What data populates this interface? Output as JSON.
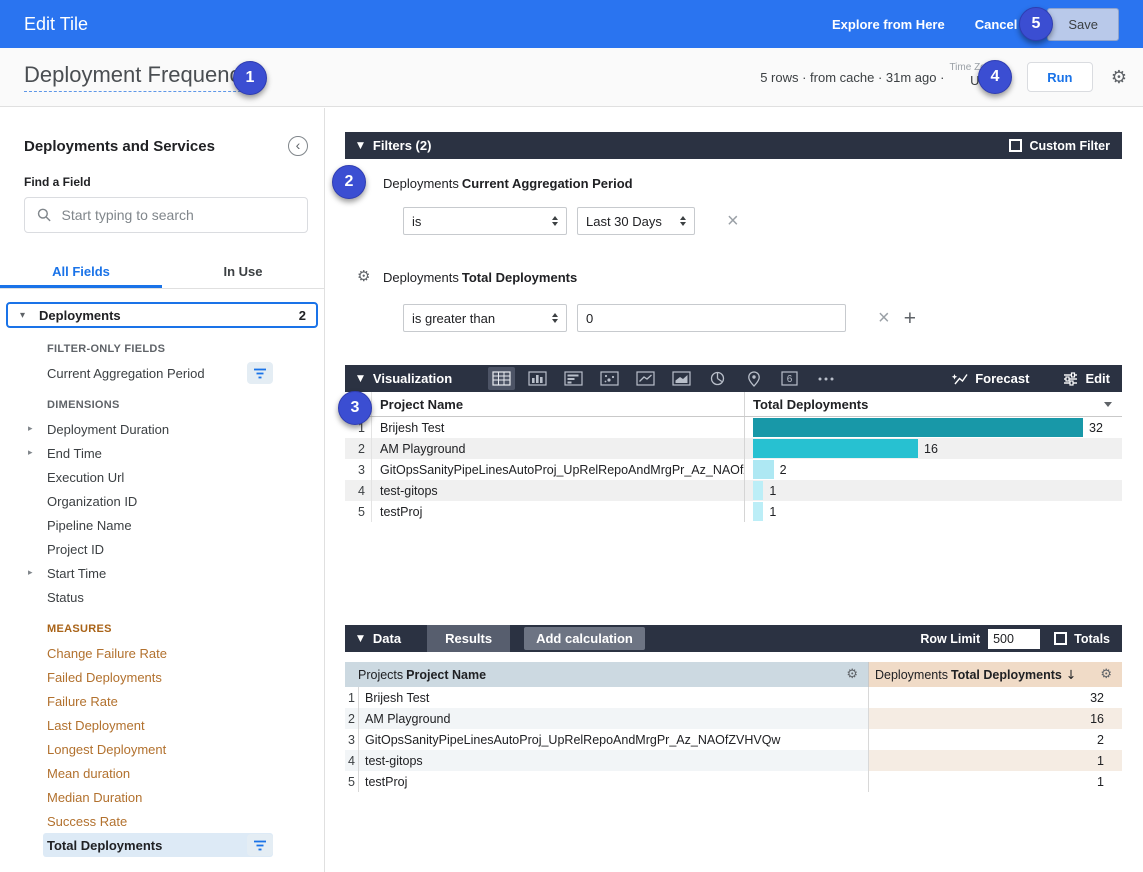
{
  "topbar": {
    "title": "Edit Tile",
    "explore": "Explore from Here",
    "cancel": "Cancel",
    "save": "Save"
  },
  "header": {
    "title": "Deployment Frequency",
    "status": "5 rows · from cache · 31m ago ·",
    "timezone_label": "Time Zone",
    "timezone_value": "UTC",
    "run_label": "Run"
  },
  "sidebar": {
    "title": "Deployments and Services",
    "find_label": "Find a Field",
    "search_placeholder": "Start typing to search",
    "tabs": [
      "All Fields",
      "In Use"
    ],
    "group": {
      "name": "Deployments",
      "count": "2"
    },
    "filter_only": {
      "header": "FILTER-ONLY FIELDS",
      "items": [
        "Current Aggregation Period"
      ]
    },
    "dimensions": {
      "header": "DIMENSIONS",
      "items": [
        {
          "label": "Deployment Duration",
          "expandable": true
        },
        {
          "label": "End Time",
          "expandable": true
        },
        {
          "label": "Execution Url",
          "expandable": false
        },
        {
          "label": "Organization ID",
          "expandable": false
        },
        {
          "label": "Pipeline Name",
          "expandable": false
        },
        {
          "label": "Project ID",
          "expandable": false
        },
        {
          "label": "Start Time",
          "expandable": true
        },
        {
          "label": "Status",
          "expandable": false
        }
      ]
    },
    "measures": {
      "header": "MEASURES",
      "items": [
        "Change Failure Rate",
        "Failed Deployments",
        "Failure Rate",
        "Last Deployment",
        "Longest Deployment",
        "Mean duration",
        "Median Duration",
        "Success Rate"
      ],
      "selected": "Total Deployments"
    }
  },
  "filters": {
    "title": "Filters (2)",
    "custom_filter": "Custom Filter",
    "rows": [
      {
        "field_prefix": "Deployments",
        "field_name": "Current Aggregation Period",
        "operator": "is",
        "value": "Last 30 Days"
      },
      {
        "field_prefix": "Deployments",
        "field_name": "Total Deployments",
        "operator": "is greater than",
        "value": "0"
      }
    ]
  },
  "visualization": {
    "title": "Visualization",
    "forecast": "Forecast",
    "edit": "Edit",
    "single_value_icon": "6",
    "columns": [
      "Project Name",
      "Total Deployments"
    ],
    "max": 32,
    "bar_colors": [
      "#1898a8",
      "#27c1d1",
      "#aee8f3",
      "#bceef7",
      "#bceef7"
    ],
    "rows": [
      {
        "num": "1",
        "name": "Brijesh Test",
        "value": 32
      },
      {
        "num": "2",
        "name": "AM Playground",
        "value": 16
      },
      {
        "num": "3",
        "name": "GitOpsSanityPipeLinesAutoProj_UpRelRepoAndMrgPr_Az_NAOfZ...",
        "value": 2
      },
      {
        "num": "4",
        "name": "test-gitops",
        "value": 1
      },
      {
        "num": "5",
        "name": "testProj",
        "value": 1
      }
    ]
  },
  "data_panel": {
    "title": "Data",
    "results_tab": "Results",
    "add_calculation": "Add calculation",
    "row_limit_label": "Row Limit",
    "row_limit_value": "500",
    "totals_label": "Totals",
    "columns": [
      {
        "prefix": "Projects",
        "name": "Project Name",
        "sort": ""
      },
      {
        "prefix": "Deployments",
        "name": "Total Deployments",
        "sort": "↓"
      }
    ],
    "rows": [
      {
        "num": "1",
        "name": "Brijesh Test",
        "value": "32"
      },
      {
        "num": "2",
        "name": "AM Playground",
        "value": "16"
      },
      {
        "num": "3",
        "name": "GitOpsSanityPipeLinesAutoProj_UpRelRepoAndMrgPr_Az_NAOfZVHVQw",
        "value": "2"
      },
      {
        "num": "4",
        "name": "test-gitops",
        "value": "1"
      },
      {
        "num": "5",
        "name": "testProj",
        "value": "1"
      }
    ]
  },
  "badges": [
    "1",
    "2",
    "3",
    "4",
    "5"
  ],
  "icons": {
    "gear": "⚙",
    "close": "×",
    "plus": "+",
    "caret_down": "▼",
    "caret_right": "▶",
    "chevron_left": "‹"
  },
  "colors": {
    "topbar_blue": "#2a74f0",
    "accent_blue": "#1a73e8",
    "dark_bar": "#2b3242",
    "measure_orange": "#b2712e",
    "dimension_header_bg": "#ccd9e1",
    "measure_header_bg": "#f0dbc7",
    "badge_blue": "#3b4ed2"
  },
  "chart_data": {
    "type": "bar",
    "orientation": "horizontal",
    "categories": [
      "Brijesh Test",
      "AM Playground",
      "GitOpsSanityPipeLinesAutoProj_UpRelRepoAndMrgPr_Az_NAOfZVHVQw",
      "test-gitops",
      "testProj"
    ],
    "values": [
      32,
      16,
      2,
      1,
      1
    ],
    "series_name": "Total Deployments",
    "xlim": [
      0,
      32
    ]
  }
}
